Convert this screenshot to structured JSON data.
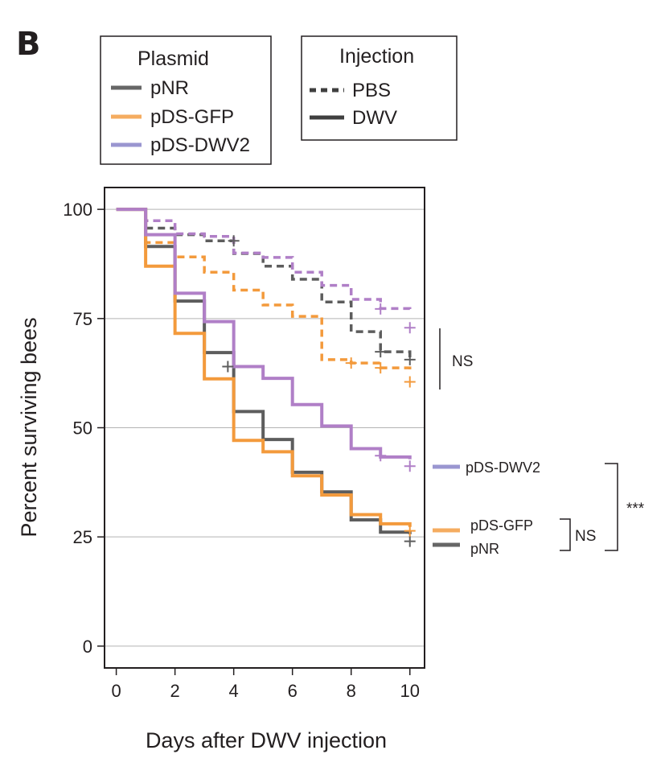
{
  "panel_label": "B",
  "legends": {
    "plasmid": {
      "title": "Plasmid",
      "items": [
        {
          "label": "pNR",
          "color": "#666666"
        },
        {
          "label": "pDS-GFP",
          "color": "#f5ac60"
        },
        {
          "label": "pDS-DWV2",
          "color": "#9a96d0"
        }
      ]
    },
    "injection": {
      "title": "Injection",
      "items": [
        {
          "label": "PBS",
          "style": "dashed",
          "color": "#3f3f3f"
        },
        {
          "label": "DWV",
          "style": "solid",
          "color": "#3f3f3f"
        }
      ]
    }
  },
  "annotations": {
    "pbs_bracket_label": "NS",
    "dwv_labels": [
      "pDS-DWV2",
      "pDS-GFP",
      "pNR"
    ],
    "gfp_vs_pnr": "NS",
    "dwv2_vs_others": "***"
  },
  "chart_data": {
    "type": "line",
    "step": true,
    "xlabel": "Days after DWV injection",
    "ylabel": "Percent surviving bees",
    "xlim": [
      -0.4,
      10.5
    ],
    "ylim": [
      -5,
      105
    ],
    "xticks": [
      0,
      2,
      4,
      6,
      8,
      10
    ],
    "yticks": [
      0,
      25,
      50,
      75,
      100
    ],
    "grid": "horizontal",
    "series": [
      {
        "name": "pNR PBS",
        "plasmid": "pNR",
        "injection": "PBS",
        "color": "#5d5d5d",
        "dash": true,
        "x": [
          0,
          1,
          2,
          3,
          4,
          5,
          6,
          7,
          8,
          9,
          10
        ],
        "y": [
          100,
          95.7,
          94.2,
          92.8,
          89.9,
          87,
          84,
          78.8,
          72,
          67.4,
          65.6
        ],
        "censored": [
          [
            4,
            92.8
          ],
          [
            9,
            67.4
          ],
          [
            10,
            65.6
          ]
        ]
      },
      {
        "name": "pDS-GFP PBS",
        "plasmid": "pDS-GFP",
        "injection": "PBS",
        "color": "#f39a3c",
        "dash": true,
        "x": [
          0,
          1,
          2,
          3,
          4,
          5,
          6,
          7,
          8,
          9,
          10
        ],
        "y": [
          100,
          92.4,
          89.1,
          85.6,
          81.5,
          78.1,
          75.5,
          65.6,
          64.8,
          63.7,
          63.2
        ],
        "censored": [
          [
            8,
            64.8
          ],
          [
            9,
            63.7
          ],
          [
            10,
            60.5
          ]
        ]
      },
      {
        "name": "pDS-DWV2 PBS",
        "plasmid": "pDS-DWV2",
        "injection": "PBS",
        "color": "#b07fc7",
        "dash": true,
        "x": [
          0,
          1,
          2,
          3,
          4,
          5,
          6,
          7,
          8,
          9,
          10
        ],
        "y": [
          100,
          97.4,
          94.4,
          93.8,
          90,
          89,
          85.6,
          82.6,
          79.4,
          77.3,
          76.5
        ],
        "censored": [
          [
            9,
            77.2
          ],
          [
            10,
            72.9
          ]
        ]
      },
      {
        "name": "pNR DWV",
        "plasmid": "pNR",
        "injection": "DWV",
        "color": "#5d5d5d",
        "dash": false,
        "x": [
          0,
          1,
          2,
          3,
          4,
          5,
          6,
          7,
          8,
          9,
          10
        ],
        "y": [
          100,
          91.5,
          79,
          67.2,
          53.7,
          47.3,
          39.8,
          35.3,
          28.9,
          26.1,
          25.6
        ],
        "censored": [
          [
            3.8,
            64
          ],
          [
            10,
            24
          ]
        ]
      },
      {
        "name": "pDS-GFP DWV",
        "plasmid": "pDS-GFP",
        "injection": "DWV",
        "color": "#f39a3c",
        "dash": false,
        "x": [
          0,
          1,
          2,
          3,
          4,
          5,
          6,
          7,
          8,
          9,
          10
        ],
        "y": [
          100,
          87,
          71.6,
          61.2,
          47.1,
          44.5,
          39,
          34.6,
          30.1,
          28,
          27.3
        ],
        "censored": [
          [
            10,
            26.4
          ]
        ]
      },
      {
        "name": "pDS-DWV2 DWV",
        "plasmid": "pDS-DWV2",
        "injection": "DWV",
        "color": "#b07fc7",
        "dash": false,
        "x": [
          0,
          1,
          2,
          3,
          4,
          5,
          6,
          7,
          8,
          9,
          10
        ],
        "y": [
          100,
          94.2,
          80.8,
          74.3,
          64,
          61.3,
          55.3,
          50.4,
          45.2,
          43.3,
          42.8
        ],
        "censored": [
          [
            9,
            43.6
          ],
          [
            10,
            41.2
          ]
        ]
      }
    ]
  }
}
